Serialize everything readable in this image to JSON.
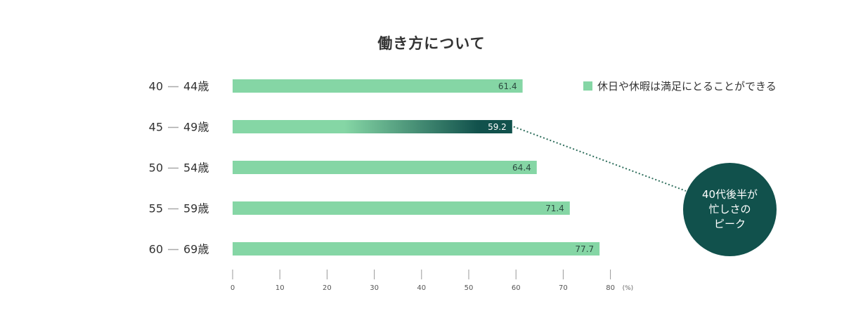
{
  "chart_data": {
    "type": "bar",
    "orientation": "horizontal",
    "title": "働き方について",
    "categories": [
      {
        "start": "40",
        "end": "44歳"
      },
      {
        "start": "45",
        "end": "49歳"
      },
      {
        "start": "50",
        "end": "54歳"
      },
      {
        "start": "55",
        "end": "59歳"
      },
      {
        "start": "60",
        "end": "69歳"
      }
    ],
    "series": [
      {
        "name": "休日や休暇は満足にとることができる",
        "values": [
          61.4,
          59.2,
          64.4,
          71.4,
          77.7
        ],
        "value_labels": [
          "61.4",
          "59.2",
          "64.4",
          "71.4",
          "77.7"
        ],
        "color": "#85d6a5"
      }
    ],
    "highlight": {
      "category_index": 1,
      "color": "#11514c"
    },
    "xlim": [
      0,
      80
    ],
    "x_ticks": [
      "0",
      "10",
      "20",
      "30",
      "40",
      "50",
      "60",
      "70",
      "80"
    ],
    "x_unit": "(%)",
    "legend_position": "top-right",
    "grid": false,
    "annotation": {
      "lines": [
        "40代後半が",
        "忙しさの",
        "ピーク"
      ],
      "color": "#11514c"
    }
  }
}
